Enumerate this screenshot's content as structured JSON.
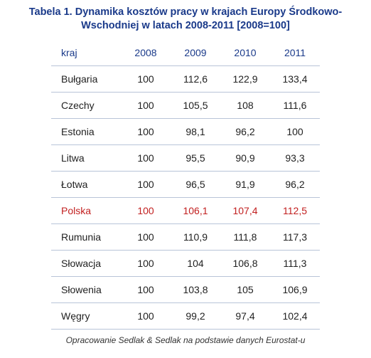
{
  "title": "Tabela 1. Dynamika kosztów pracy w krajach Europy Środkowo-Wschodniej w latach 2008-2011 [2008=100]",
  "table": {
    "type": "table",
    "columns": [
      "kraj",
      "2008",
      "2009",
      "2010",
      "2011"
    ],
    "rows": [
      {
        "country": "Bułgaria",
        "v2008": "100",
        "v2009": "112,6",
        "v2010": "122,9",
        "v2011": "133,4",
        "highlight": false
      },
      {
        "country": "Czechy",
        "v2008": "100",
        "v2009": "105,5",
        "v2010": "108",
        "v2011": "111,6",
        "highlight": false
      },
      {
        "country": "Estonia",
        "v2008": "100",
        "v2009": "98,1",
        "v2010": "96,2",
        "v2011": "100",
        "highlight": false
      },
      {
        "country": "Litwa",
        "v2008": "100",
        "v2009": "95,5",
        "v2010": "90,9",
        "v2011": "93,3",
        "highlight": false
      },
      {
        "country": "Łotwa",
        "v2008": "100",
        "v2009": "96,5",
        "v2010": "91,9",
        "v2011": "96,2",
        "highlight": false
      },
      {
        "country": "Polska",
        "v2008": "100",
        "v2009": "106,1",
        "v2010": "107,4",
        "v2011": "112,5",
        "highlight": true
      },
      {
        "country": "Rumunia",
        "v2008": "100",
        "v2009": "110,9",
        "v2010": "111,8",
        "v2011": "117,3",
        "highlight": false
      },
      {
        "country": "Słowacja",
        "v2008": "100",
        "v2009": "104",
        "v2010": "106,8",
        "v2011": "111,3",
        "highlight": false
      },
      {
        "country": "Słowenia",
        "v2008": "100",
        "v2009": "103,8",
        "v2010": "105",
        "v2011": "106,9",
        "highlight": false
      },
      {
        "country": "Węgry",
        "v2008": "100",
        "v2009": "99,2",
        "v2010": "97,4",
        "v2011": "102,4",
        "highlight": false
      }
    ],
    "header_color": "#1a3a8a",
    "highlight_color": "#c22020",
    "border_color": "#b8c4d8",
    "background_color": "#ffffff",
    "font_size_body": 14,
    "font_size_title": 14.5,
    "font_size_footnote": 12
  },
  "footnote": "Opracowanie Sedlak & Sedlak na podstawie danych Eurostat-u"
}
